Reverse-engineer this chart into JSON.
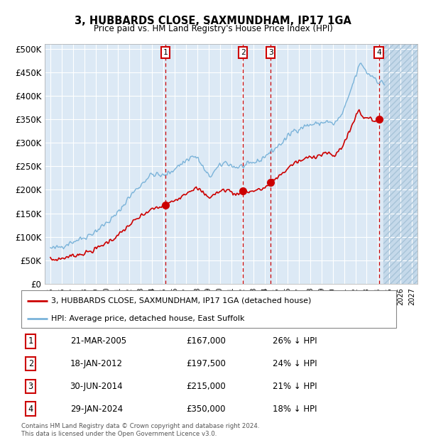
{
  "title": "3, HUBBARDS CLOSE, SAXMUNDHAM, IP17 1GA",
  "subtitle": "Price paid vs. HM Land Registry's House Price Index (HPI)",
  "plot_background": "#dce9f5",
  "hpi_color": "#7ab3d9",
  "price_color": "#cc0000",
  "vline_color": "#cc0000",
  "transactions": [
    {
      "num": 1,
      "date": "21-MAR-2005",
      "price": 167000,
      "pct": "26% ↓ HPI",
      "year": 2005.2
    },
    {
      "num": 2,
      "date": "18-JAN-2012",
      "price": 197500,
      "pct": "24% ↓ HPI",
      "year": 2012.05
    },
    {
      "num": 3,
      "date": "30-JUN-2014",
      "price": 215000,
      "pct": "21% ↓ HPI",
      "year": 2014.5
    },
    {
      "num": 4,
      "date": "29-JAN-2024",
      "price": 350000,
      "pct": "18% ↓ HPI",
      "year": 2024.08
    }
  ],
  "legend_line1": "3, HUBBARDS CLOSE, SAXMUNDHAM, IP17 1GA (detached house)",
  "legend_line2": "HPI: Average price, detached house, East Suffolk",
  "footer": "Contains HM Land Registry data © Crown copyright and database right 2024.\nThis data is licensed under the Open Government Licence v3.0.",
  "ylim": [
    0,
    510000
  ],
  "yticks": [
    0,
    50000,
    100000,
    150000,
    200000,
    250000,
    300000,
    350000,
    400000,
    450000,
    500000
  ],
  "xmin": 1994.5,
  "xmax": 2027.5,
  "future_shading_start": 2024.5
}
